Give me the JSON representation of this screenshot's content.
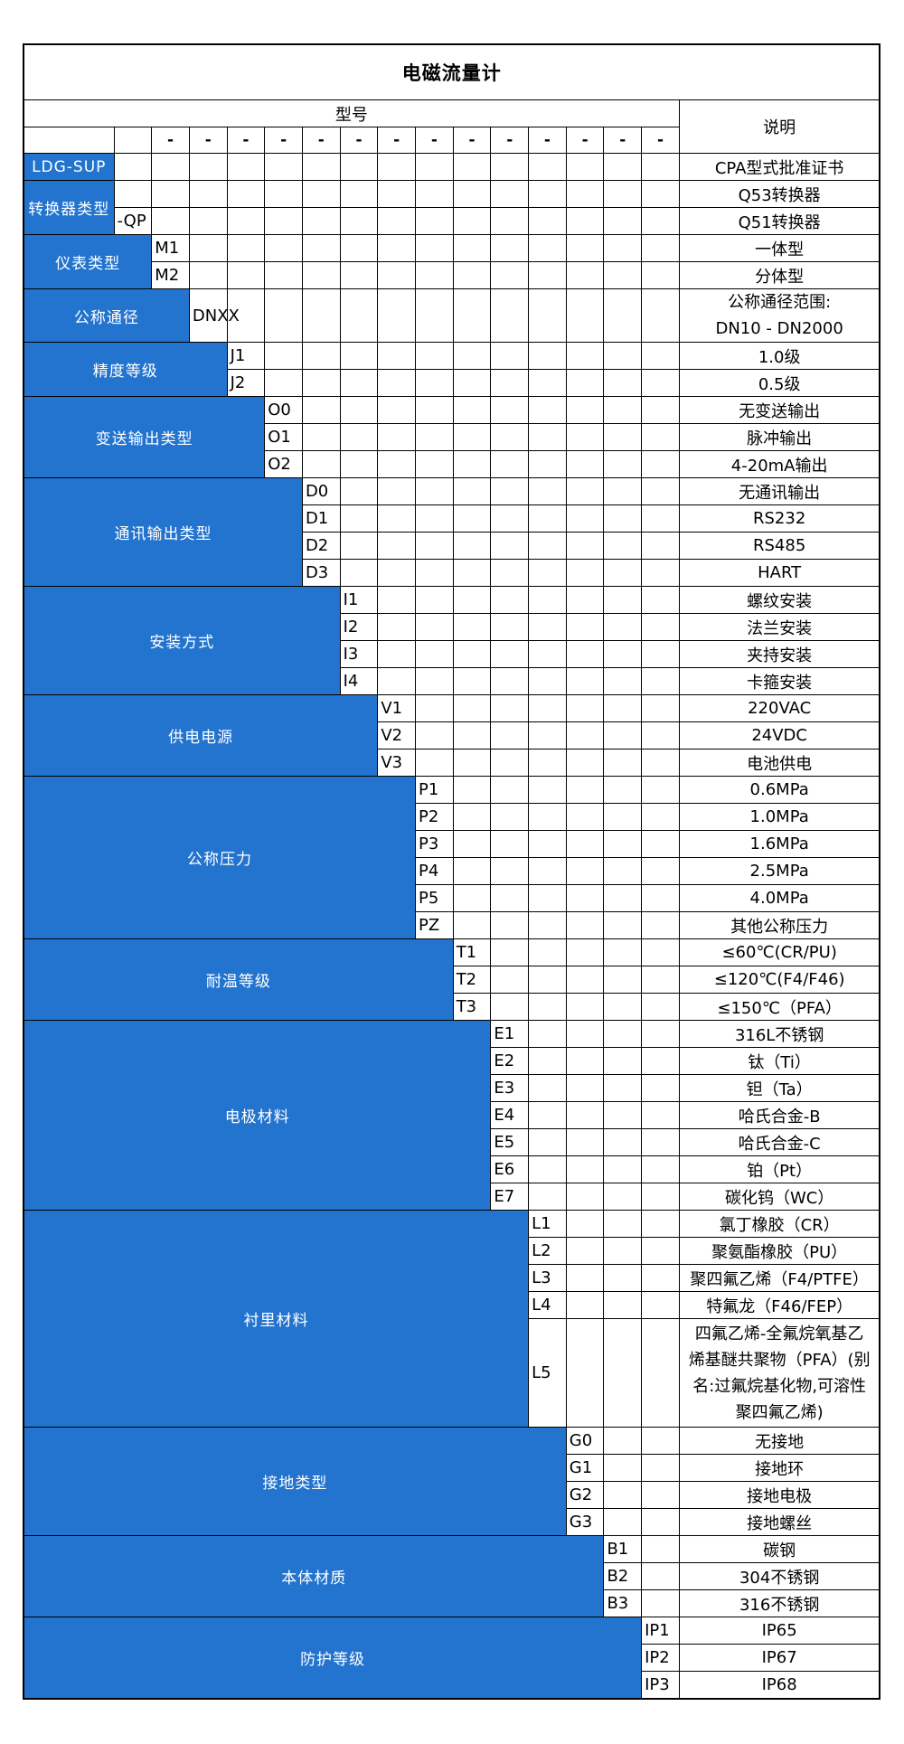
{
  "title": "电磁流量计",
  "header": {
    "model_label": "型号",
    "desc_label": "说明",
    "dash": "-",
    "dash_start_col": 3,
    "total_code_cols": 16
  },
  "colors": {
    "accent_blue": "#2374cf",
    "border": "#000000",
    "text_on_blue": "#ffffff",
    "text": "#000000"
  },
  "sections": [
    {
      "label": "LDG-SUP",
      "code_col": 2,
      "rows": [
        {
          "code": "",
          "desc": "CPA型式批准证书"
        }
      ]
    },
    {
      "label": "转换器类型",
      "code_col": 2,
      "rows": [
        {
          "code": "",
          "desc": "Q53转换器"
        },
        {
          "code": "-QP",
          "desc": "Q51转换器"
        }
      ]
    },
    {
      "label": "仪表类型",
      "code_col": 3,
      "rows": [
        {
          "code": "M1",
          "desc": "一体型"
        },
        {
          "code": "M2",
          "desc": "分体型"
        }
      ]
    },
    {
      "label": "公称通径",
      "code_col": 4,
      "rows": [
        {
          "code": "DNXX",
          "desc_lines": [
            "公称通径范围:",
            "DN10 - DN2000"
          ]
        }
      ]
    },
    {
      "label": "精度等级",
      "code_col": 5,
      "rows": [
        {
          "code": "J1",
          "desc": "1.0级"
        },
        {
          "code": "J2",
          "desc": "0.5级"
        }
      ]
    },
    {
      "label": "变送输出类型",
      "code_col": 6,
      "rows": [
        {
          "code": "O0",
          "desc": "无变送输出"
        },
        {
          "code": "O1",
          "desc": "脉冲输出"
        },
        {
          "code": "O2",
          "desc": "4-20mA输出"
        }
      ]
    },
    {
      "label": "通讯输出类型",
      "code_col": 7,
      "rows": [
        {
          "code": "D0",
          "desc": "无通讯输出"
        },
        {
          "code": "D1",
          "desc": "RS232"
        },
        {
          "code": "D2",
          "desc": "RS485"
        },
        {
          "code": "D3",
          "desc": "HART"
        }
      ]
    },
    {
      "label": "安装方式",
      "code_col": 8,
      "rows": [
        {
          "code": "I1",
          "desc": "螺纹安装"
        },
        {
          "code": "I2",
          "desc": "法兰安装"
        },
        {
          "code": "I3",
          "desc": "夹持安装"
        },
        {
          "code": "I4",
          "desc": "卡箍安装"
        }
      ]
    },
    {
      "label": "供电电源",
      "code_col": 9,
      "rows": [
        {
          "code": "V1",
          "desc": "220VAC"
        },
        {
          "code": "V2",
          "desc": "24VDC"
        },
        {
          "code": "V3",
          "desc": "电池供电"
        }
      ]
    },
    {
      "label": "公称压力",
      "code_col": 10,
      "rows": [
        {
          "code": "P1",
          "desc": "0.6MPa"
        },
        {
          "code": "P2",
          "desc": "1.0MPa"
        },
        {
          "code": "P3",
          "desc": "1.6MPa"
        },
        {
          "code": "P4",
          "desc": "2.5MPa"
        },
        {
          "code": "P5",
          "desc": "4.0MPa"
        },
        {
          "code": "PZ",
          "desc": "其他公称压力"
        }
      ]
    },
    {
      "label": "耐温等级",
      "code_col": 11,
      "rows": [
        {
          "code": "T1",
          "desc": "≤60℃(CR/PU)"
        },
        {
          "code": "T2",
          "desc": "≤120℃(F4/F46)"
        },
        {
          "code": "T3",
          "desc": "≤150℃（PFA）"
        }
      ]
    },
    {
      "label": "电极材料",
      "code_col": 12,
      "rows": [
        {
          "code": "E1",
          "desc": "316L不锈钢"
        },
        {
          "code": "E2",
          "desc": "钛（Ti）"
        },
        {
          "code": "E3",
          "desc": "钽（Ta）"
        },
        {
          "code": "E4",
          "desc": "哈氏合金-B"
        },
        {
          "code": "E5",
          "desc": "哈氏合金-C"
        },
        {
          "code": "E6",
          "desc": "铂（Pt）"
        },
        {
          "code": "E7",
          "desc": "碳化钨（WC）"
        }
      ]
    },
    {
      "label": "衬里材料",
      "code_col": 13,
      "rows": [
        {
          "code": "L1",
          "desc": "氯丁橡胶（CR）"
        },
        {
          "code": "L2",
          "desc": "聚氨酯橡胶（PU）"
        },
        {
          "code": "L3",
          "desc": "聚四氟乙烯（F4/PTFE）"
        },
        {
          "code": "L4",
          "desc": "特氟龙（F46/FEP）"
        },
        {
          "code": "L5",
          "desc_lines": [
            "四氟乙烯-全氟烷氧基乙",
            "烯基醚共聚物（PFA）(别",
            "名:过氟烷基化物,可溶性",
            "聚四氟乙烯)"
          ]
        }
      ]
    },
    {
      "label": "接地类型",
      "code_col": 14,
      "rows": [
        {
          "code": "G0",
          "desc": "无接地"
        },
        {
          "code": "G1",
          "desc": "接地环"
        },
        {
          "code": "G2",
          "desc": "接地电极"
        },
        {
          "code": "G3",
          "desc": "接地螺丝"
        }
      ]
    },
    {
      "label": "本体材质",
      "code_col": 15,
      "rows": [
        {
          "code": "B1",
          "desc": "碳钢"
        },
        {
          "code": "B2",
          "desc": "304不锈钢"
        },
        {
          "code": "B3",
          "desc": "316不锈钢"
        }
      ]
    },
    {
      "label": "防护等级",
      "code_col": 16,
      "rows": [
        {
          "code": "IP1",
          "desc": "IP65"
        },
        {
          "code": "IP2",
          "desc": "IP67"
        },
        {
          "code": "IP3",
          "desc": "IP68"
        }
      ]
    }
  ]
}
